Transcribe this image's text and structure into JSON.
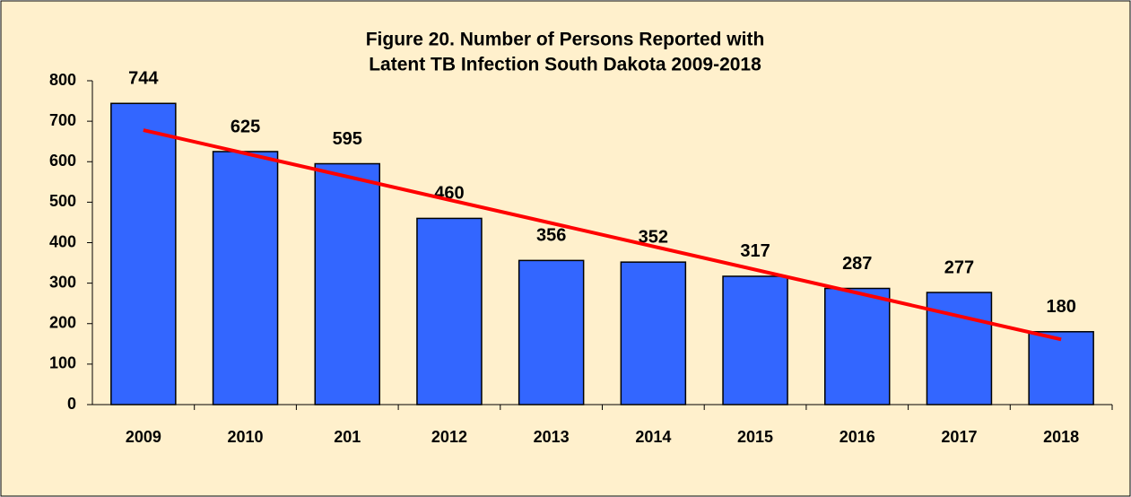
{
  "chart_data": {
    "type": "bar",
    "title": [
      "Figure 20.  Number of Persons Reported with",
      "Latent TB Infection    South Dakota   2009-2018"
    ],
    "categories": [
      "2009",
      "2010",
      "201",
      "2012",
      "2013",
      "2014",
      "2015",
      "2016",
      "2017",
      "2018"
    ],
    "values": [
      744,
      625,
      595,
      460,
      356,
      352,
      317,
      287,
      277,
      180
    ],
    "color": "#3366ff",
    "trendline": {
      "color": "#ff0000",
      "values": [
        678,
        161
      ]
    },
    "ylim": [
      0,
      800
    ],
    "yticks": [
      0,
      100,
      200,
      300,
      400,
      500,
      600,
      700,
      800
    ],
    "grid": false
  }
}
